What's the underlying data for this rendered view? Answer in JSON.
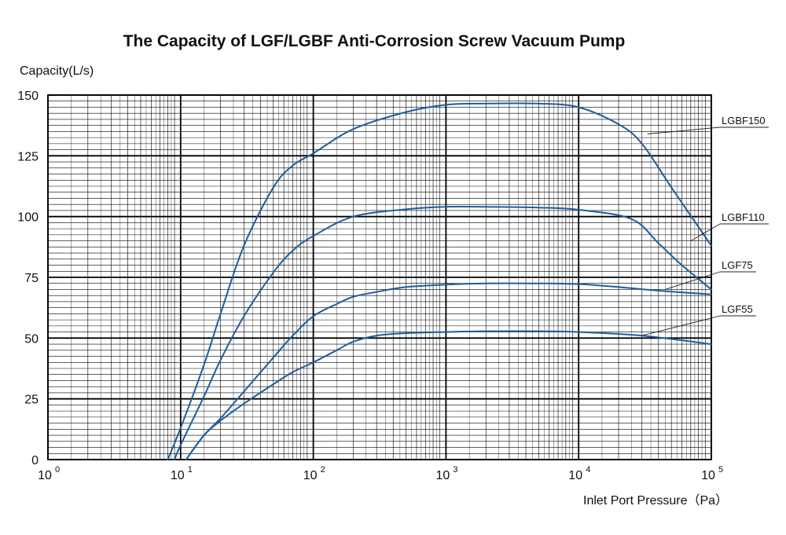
{
  "chart_data": {
    "type": "line",
    "title": "The Capacity of LGF/LGBF Anti-Corrosion Screw Vacuum Pump",
    "ylabel": "Capacity(L/s)",
    "xlabel": "Inlet Port Pressure（Pa）",
    "x_scale": "log",
    "xlim": [
      1,
      100000
    ],
    "ylim": [
      0,
      150
    ],
    "grid": true,
    "y_ticks": [
      0,
      25,
      50,
      75,
      100,
      125,
      150
    ],
    "x_ticks": [
      {
        "value": 1,
        "base": "10",
        "exp": "0"
      },
      {
        "value": 10,
        "base": "10",
        "exp": "1"
      },
      {
        "value": 100,
        "base": "10",
        "exp": "2"
      },
      {
        "value": 1000,
        "base": "10",
        "exp": "3"
      },
      {
        "value": 10000,
        "base": "10",
        "exp": "4"
      },
      {
        "value": 100000,
        "base": "10",
        "exp": "5"
      }
    ],
    "series": [
      {
        "name": "LGBF150",
        "color": "#1f5d9c",
        "x": [
          8,
          10,
          15,
          20,
          30,
          50,
          70,
          100,
          200,
          500,
          1000,
          2000,
          5000,
          10000,
          20000,
          30000,
          50000,
          100000
        ],
        "y": [
          0,
          13,
          39,
          60,
          88,
          112,
          121,
          126,
          136,
          143,
          146,
          146.5,
          146.5,
          145,
          138,
          130,
          112,
          88
        ]
      },
      {
        "name": "LGBF110",
        "color": "#1f5d9c",
        "x": [
          9,
          10,
          15,
          20,
          30,
          50,
          70,
          100,
          200,
          500,
          1000,
          2000,
          5000,
          10000,
          25000,
          40000,
          60000,
          100000
        ],
        "y": [
          0,
          6,
          26,
          41,
          59,
          77,
          86,
          92,
          100,
          103,
          104,
          104,
          103.7,
          102.8,
          99,
          89,
          80,
          70
        ]
      },
      {
        "name": "LGF75",
        "color": "#1f5d9c",
        "x": [
          11,
          15,
          20,
          30,
          50,
          70,
          100,
          150,
          200,
          300,
          500,
          1000,
          2000,
          5000,
          10000,
          20000,
          40000,
          100000
        ],
        "y": [
          0,
          10,
          17,
          28,
          42,
          51,
          59,
          64,
          67,
          69,
          71,
          72,
          72.5,
          72.5,
          72.2,
          71,
          69.5,
          68
        ]
      },
      {
        "name": "LGF55",
        "color": "#1f5d9c",
        "x": [
          11,
          15,
          20,
          30,
          50,
          70,
          100,
          150,
          200,
          300,
          500,
          1000,
          2000,
          5000,
          10000,
          30000,
          100000
        ],
        "y": [
          0,
          10,
          16,
          23,
          31,
          36,
          40,
          45,
          48.5,
          51,
          52,
          52.5,
          52.8,
          52.8,
          52.5,
          51,
          47.5
        ]
      }
    ],
    "series_labels": [
      {
        "text": "LGBF150",
        "leader_x": 33000,
        "leader_y": 134
      },
      {
        "text": "LGBF110",
        "leader_x": 70000,
        "leader_y": 90
      },
      {
        "text": "LGF75",
        "leader_x": 45000,
        "leader_y": 70
      },
      {
        "text": "LGF55",
        "leader_x": 30000,
        "leader_y": 51
      }
    ]
  }
}
